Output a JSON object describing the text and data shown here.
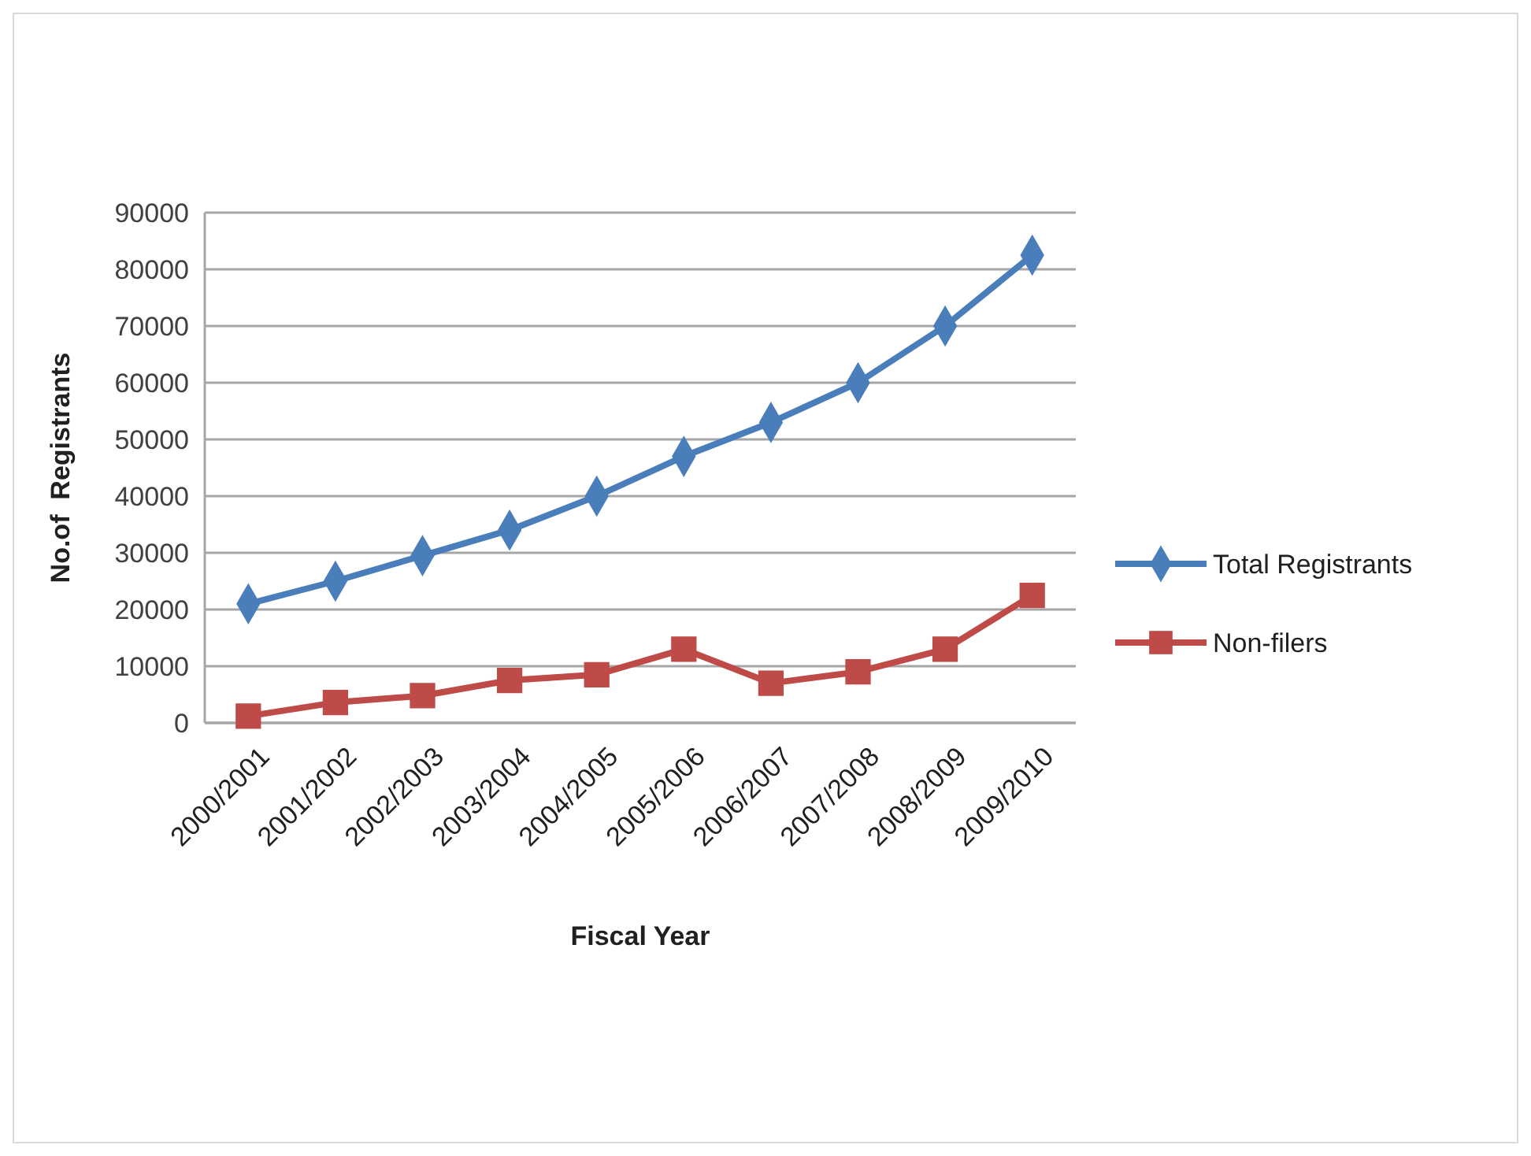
{
  "chart_data": {
    "type": "line",
    "xlabel": "Fiscal Year",
    "ylabel": "No.of  Registrants",
    "categories": [
      "2000/2001",
      "2001/2002",
      "2002/2003",
      "2003/2004",
      "2004/2005",
      "2005/2006",
      "2006/2007",
      "2007/2008",
      "2008/2009",
      "2009/2010"
    ],
    "series": [
      {
        "name": "Total Registrants",
        "color": "#4a7ebb",
        "marker": "diamond",
        "values": [
          21000,
          25000,
          29500,
          34000,
          40000,
          47000,
          53000,
          60000,
          70000,
          82500
        ]
      },
      {
        "name": "Non-filers",
        "color": "#be4b48",
        "marker": "square",
        "values": [
          1200,
          3600,
          4800,
          7500,
          8500,
          13000,
          7000,
          9000,
          13000,
          22500
        ]
      }
    ],
    "ylim": [
      0,
      90000
    ],
    "yticks": [
      0,
      10000,
      20000,
      30000,
      40000,
      50000,
      60000,
      70000,
      80000,
      90000
    ],
    "grid": "y",
    "legend": "right"
  }
}
